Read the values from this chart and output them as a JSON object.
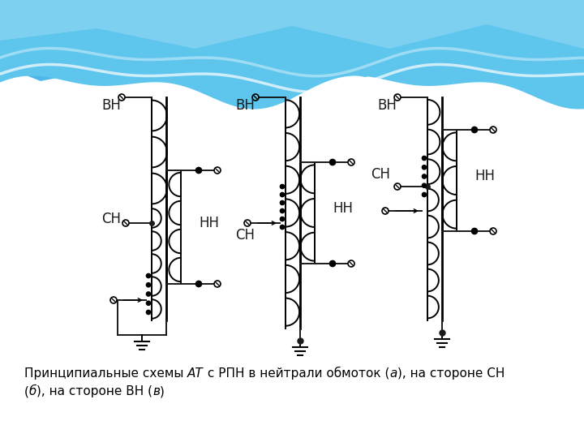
{
  "bg_top_color": "#4db8e8",
  "line_color": "#1a1a1a",
  "text_color": "#1a1a1a",
  "label_VN": "ВН",
  "label_SN": "СН",
  "label_NN": "НН",
  "figsize": [
    7.2,
    5.4
  ],
  "dpi": 100,
  "wave1_color": "#5bbfe8",
  "wave2_color": "#8dd4f0",
  "wave3_color": "#b8e4f7"
}
